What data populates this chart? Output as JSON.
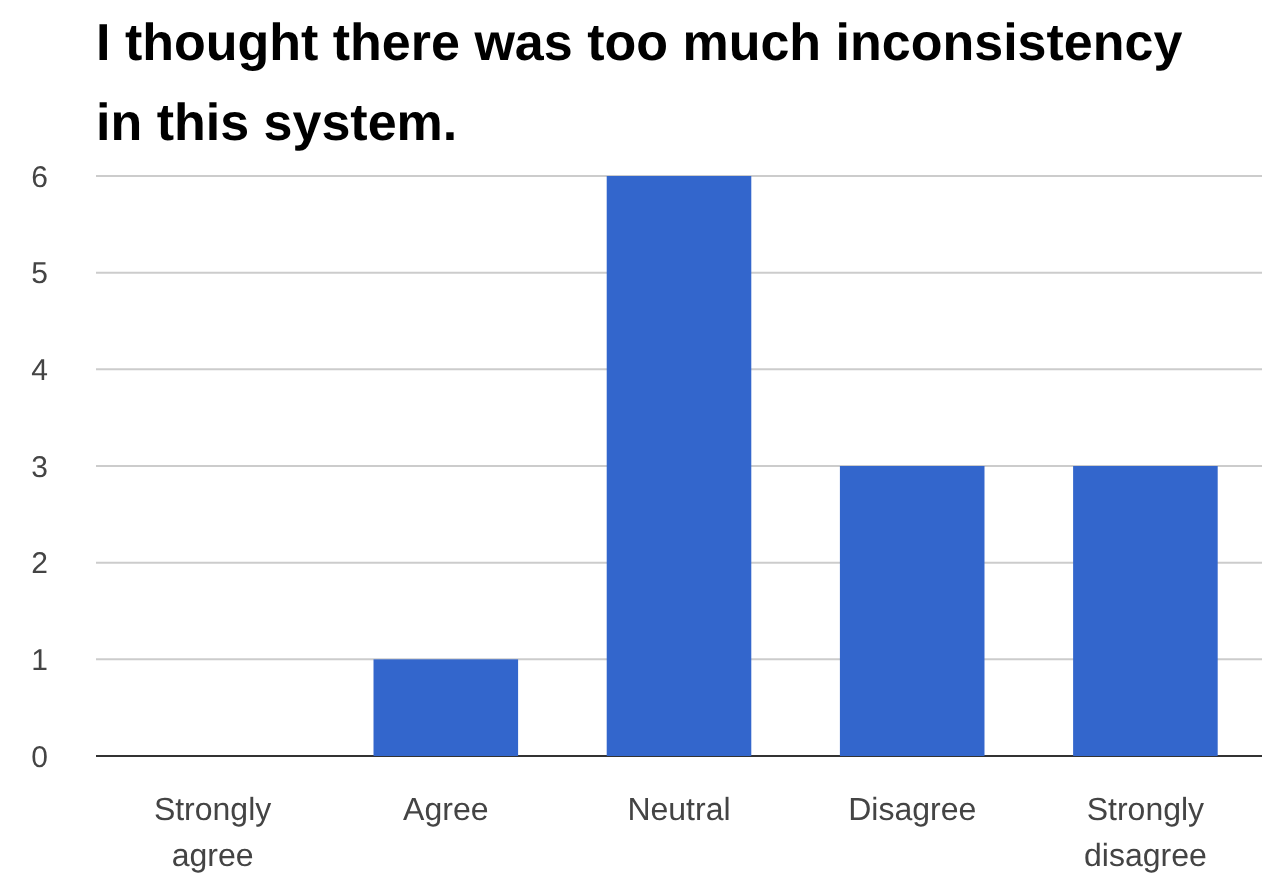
{
  "chart_data": {
    "type": "bar",
    "title": "I thought there was too much inconsistency in this system.",
    "categories": [
      "Strongly agree",
      "Agree",
      "Neutral",
      "Disagree",
      "Strongly disagree"
    ],
    "values": [
      0,
      1,
      6,
      3,
      3
    ],
    "color": "#3366cc",
    "ylim": [
      0,
      6
    ],
    "yticks": [
      0,
      1,
      2,
      3,
      4,
      5,
      6
    ],
    "grid": "y"
  }
}
